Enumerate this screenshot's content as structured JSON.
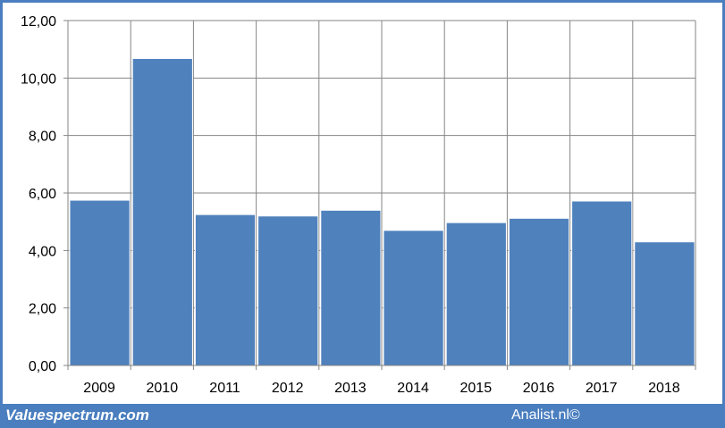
{
  "colors": {
    "bar": "#4f81bd",
    "bar_edge": "#ffffff",
    "grid": "#868686",
    "background": "#ffffff",
    "border": "#4a7ebf",
    "footer_text": "#ffffff"
  },
  "footer": {
    "left": "Valuespectrum.com",
    "right": "Analist.nl©"
  },
  "chart_data": {
    "type": "bar",
    "categories": [
      "2009",
      "2010",
      "2011",
      "2012",
      "2013",
      "2014",
      "2015",
      "2016",
      "2017",
      "2018"
    ],
    "values": [
      5.75,
      10.68,
      5.25,
      5.2,
      5.4,
      4.7,
      4.97,
      5.12,
      5.72,
      4.3
    ],
    "ylim": [
      0,
      12
    ],
    "yticks": [
      "0,00",
      "2,00",
      "4,00",
      "6,00",
      "8,00",
      "10,00",
      "12,00"
    ],
    "grid": true,
    "title": "",
    "xlabel": "",
    "ylabel": ""
  }
}
